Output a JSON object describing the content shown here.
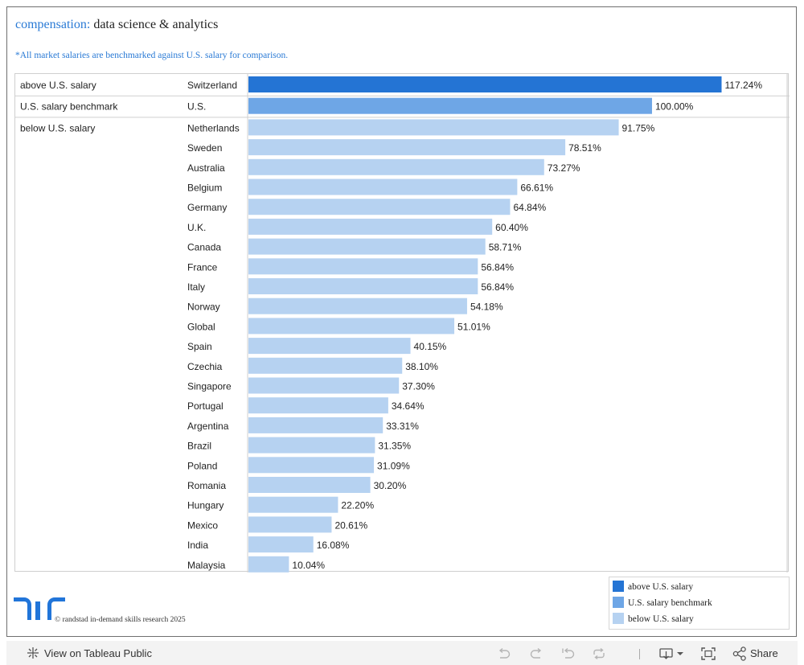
{
  "title": {
    "prefix": "compensation:",
    "rest": "data science & analytics"
  },
  "note": "*All market salaries are benchmarked against U.S. salary for comparison.",
  "colors": {
    "above": "#2474d4",
    "benchmark": "#6ea6e6",
    "below": "#b6d2f1"
  },
  "chart_data": {
    "type": "bar",
    "orientation": "horizontal",
    "title": "compensation: data science & analytics",
    "xlabel": "",
    "ylabel": "",
    "xlim": [
      0,
      120
    ],
    "value_suffix": "%",
    "groups": [
      {
        "name": "above U.S. salary",
        "key": "above",
        "categories": [
          "Switzerland"
        ],
        "values": [
          117.24
        ]
      },
      {
        "name": "U.S. salary benchmark",
        "key": "benchmark",
        "categories": [
          "U.S."
        ],
        "values": [
          100.0
        ]
      },
      {
        "name": "below U.S. salary",
        "key": "below",
        "categories": [
          "Netherlands",
          "Sweden",
          "Australia",
          "Belgium",
          "Germany",
          "U.K.",
          "Canada",
          "France",
          "Italy",
          "Norway",
          "Global",
          "Spain",
          "Czechia",
          "Singapore",
          "Portugal",
          "Argentina",
          "Brazil",
          "Poland",
          "Romania",
          "Hungary",
          "Mexico",
          "India",
          "Malaysia"
        ],
        "values": [
          91.75,
          78.51,
          73.27,
          66.61,
          64.84,
          60.4,
          58.71,
          56.84,
          56.84,
          54.18,
          51.01,
          40.15,
          38.1,
          37.3,
          34.64,
          33.31,
          31.35,
          31.09,
          30.2,
          22.2,
          20.61,
          16.08,
          10.04
        ]
      }
    ],
    "legend": [
      "above U.S. salary",
      "U.S. salary benchmark",
      "below U.S. salary"
    ],
    "legend_position": "bottom-right"
  },
  "footer": {
    "copyright": "© randstad in-demand skills research 2025"
  },
  "toolbar": {
    "view_label": "View on Tableau Public",
    "share_label": "Share"
  }
}
